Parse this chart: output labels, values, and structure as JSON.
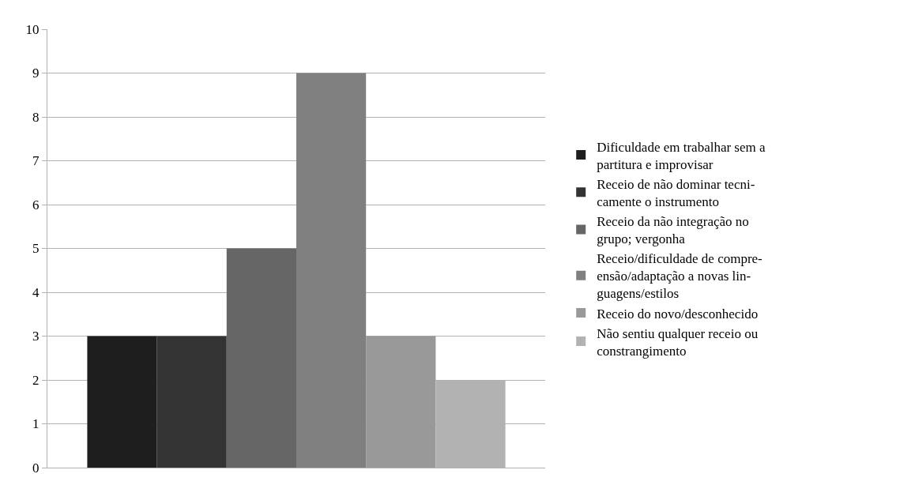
{
  "chart_data": {
    "type": "bar",
    "categories": [
      null
    ],
    "series": [
      {
        "name": "Dificuldade em trabalhar sem a\npartitura e improvisar",
        "color": "#1e1e1e",
        "values": [
          3
        ]
      },
      {
        "name": "Receio de não dominar tecni-\ncamente o instrumento",
        "color": "#333333",
        "values": [
          3
        ]
      },
      {
        "name": "Receio da não integração no\ngrupo; vergonha",
        "color": "#666666",
        "values": [
          5
        ]
      },
      {
        "name": "Receio/dificuldade de compre-\nensão/adaptação a novas lin-\nguagens/estilos",
        "color": "#808080",
        "values": [
          9
        ]
      },
      {
        "name": "Receio do novo/desconhecido",
        "color": "#999999",
        "values": [
          3
        ]
      },
      {
        "name": "Não sentiu qualquer receio ou\nconstrangimento",
        "color": "#b2b2b2",
        "values": [
          2
        ]
      }
    ],
    "ylim": [
      0,
      10
    ],
    "yticks": [
      0,
      1,
      2,
      3,
      4,
      5,
      6,
      7,
      8,
      9,
      10
    ],
    "grid": "y",
    "legend": "right"
  }
}
